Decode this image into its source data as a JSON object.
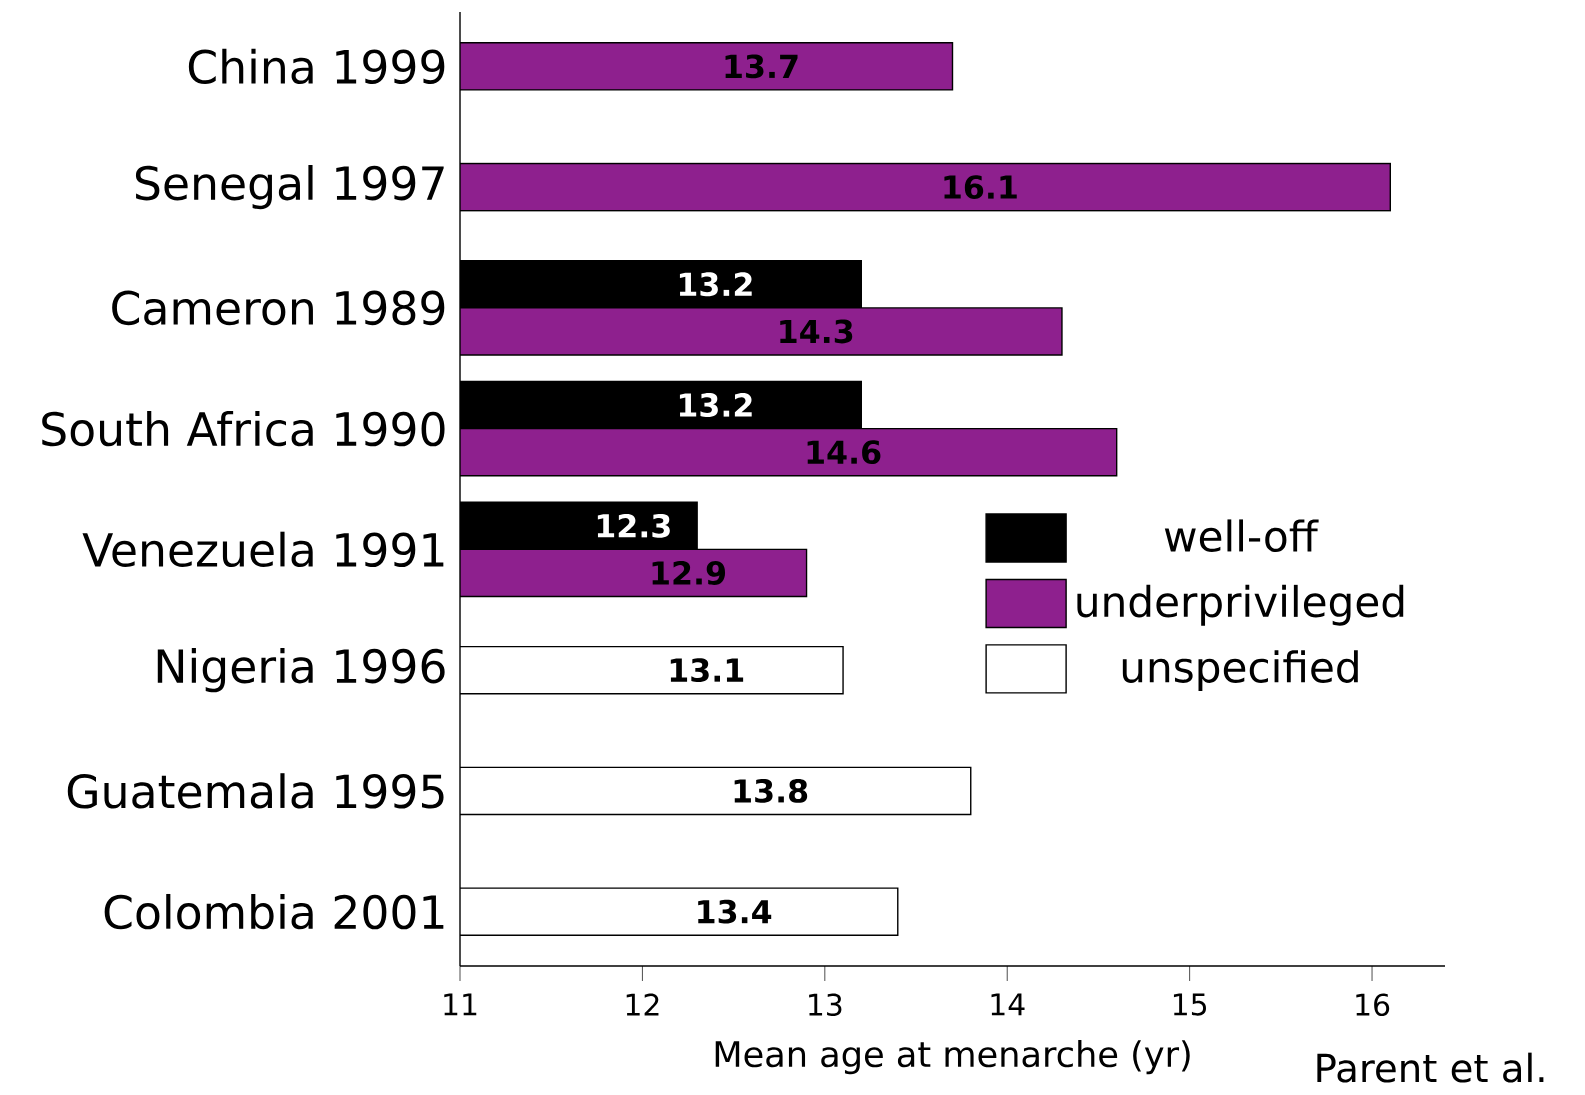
{
  "chart_data": {
    "type": "bar",
    "orientation": "horizontal",
    "categories": [
      "China 1999",
      "Senegal 1997",
      "Cameron 1989",
      "South Africa 1990",
      "Venezuela 1991",
      "Nigeria 1996",
      "Guatemala 1995",
      "Colombia 2001"
    ],
    "series": [
      {
        "name": "well-off",
        "color": "#000000",
        "values": [
          null,
          null,
          13.2,
          13.2,
          12.3,
          null,
          null,
          null
        ]
      },
      {
        "name": "underprivileged",
        "color": "#8e208e",
        "values": [
          13.7,
          16.1,
          14.3,
          14.6,
          12.9,
          null,
          null,
          null
        ]
      },
      {
        "name": "unspecified",
        "color": "#ffffff",
        "values": [
          null,
          null,
          null,
          null,
          null,
          13.1,
          13.8,
          13.4
        ]
      }
    ],
    "xlim": [
      11,
      16.4
    ],
    "xticks": [
      11,
      12,
      13,
      14,
      15,
      16
    ],
    "xlabel": "Mean age at menarche (yr)",
    "data_labels": true,
    "legend": "right",
    "grid": false,
    "annotations": [
      "Parent et al."
    ]
  }
}
